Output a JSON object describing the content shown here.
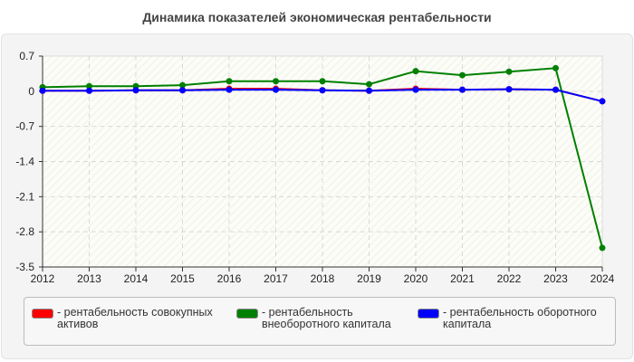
{
  "chart_data": {
    "type": "line",
    "title": "Динамика показателей экономическая рентабельности",
    "x": [
      2012,
      2013,
      2014,
      2015,
      2016,
      2017,
      2018,
      2019,
      2020,
      2021,
      2022,
      2023,
      2024
    ],
    "ylim": [
      -3.5,
      0.7
    ],
    "yticks": [
      "0.7",
      "0",
      "-0.7",
      "-1.4",
      "-2.1",
      "-2.8",
      "-3.5"
    ],
    "ytick_values": [
      0.7,
      0,
      -0.7,
      -1.4,
      -2.1,
      -2.8,
      -3.5
    ],
    "grid": true,
    "legend": "bottom",
    "series": [
      {
        "name": "рентабельность совокупных активов",
        "color": "#ff0000",
        "values": [
          0.01,
          0.01,
          0.02,
          0.02,
          0.05,
          0.05,
          0.02,
          0.01,
          0.05,
          0.03,
          0.04,
          0.03,
          -0.2
        ]
      },
      {
        "name": "рентабельность внеоборотного капитала",
        "color": "#008000",
        "values": [
          0.08,
          0.1,
          0.1,
          0.12,
          0.2,
          0.2,
          0.2,
          0.14,
          0.4,
          0.32,
          0.39,
          0.46,
          -3.12
        ]
      },
      {
        "name": "рентабельность оборотного капитала",
        "color": "#0000ff",
        "values": [
          0.01,
          0.01,
          0.02,
          0.02,
          0.03,
          0.03,
          0.02,
          0.01,
          0.03,
          0.03,
          0.04,
          0.03,
          -0.2
        ]
      }
    ]
  }
}
